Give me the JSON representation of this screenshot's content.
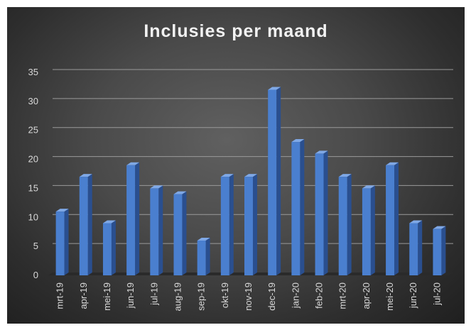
{
  "chart_data": {
    "type": "bar",
    "title": "Inclusies per maand",
    "xlabel": "",
    "ylabel": "",
    "categories": [
      "mrt-19",
      "apr-19",
      "mei-19",
      "jun-19",
      "jul-19",
      "aug-19",
      "sep-19",
      "okt-19",
      "nov-19",
      "dec-19",
      "jan-20",
      "feb-20",
      "mrt-20",
      "apr-20",
      "mei-20",
      "jun-20",
      "jul-20"
    ],
    "values": [
      11,
      17,
      9,
      19,
      15,
      14,
      6,
      17,
      17,
      32,
      23,
      21,
      17,
      15,
      19,
      9,
      8
    ],
    "ylim": [
      0,
      35
    ],
    "yticks": [
      "0",
      "5",
      "10",
      "15",
      "20",
      "25",
      "30",
      "35"
    ],
    "grid": true,
    "legend": "none",
    "colors": {
      "bar_front": "#4a7fcf",
      "bar_side": "#2a4f8f",
      "bar_top": "#7fa8e6",
      "background": "#4a4a4a",
      "gridline": "#9a9a9a",
      "text": "#d9d9d9"
    }
  }
}
